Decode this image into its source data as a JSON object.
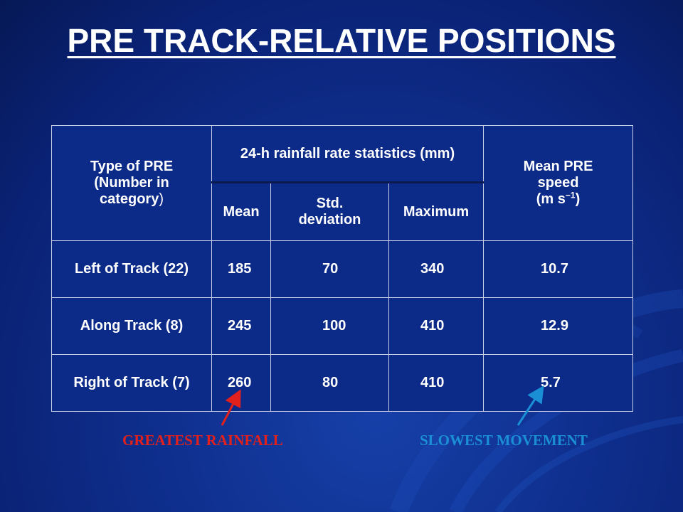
{
  "title": "PRE TRACK-RELATIVE POSITIONS",
  "table": {
    "type_header_line1": "Type of PRE",
    "type_header_line2": "(Number in",
    "type_header_line3": "category",
    "type_header_paren": ")",
    "rainfall_header": "24-h rainfall rate statistics (mm)",
    "speed_header_line1": "Mean PRE",
    "speed_header_line2": "speed",
    "speed_header_unit_open": "(m s",
    "speed_header_unit_sup": "−1",
    "speed_header_unit_close": ")",
    "col_mean": "Mean",
    "col_std_line1": "Std.",
    "col_std_line2": "deviation",
    "col_max": "Maximum",
    "rows": [
      {
        "label": "Left of Track (22)",
        "mean": "185",
        "std": "70",
        "max": "340",
        "speed": "10.7"
      },
      {
        "label": "Along Track (8)",
        "mean": "245",
        "std": "100",
        "max": "410",
        "speed": "12.9"
      },
      {
        "label": "Right of Track (7)",
        "mean": "260",
        "std": "80",
        "max": "410",
        "speed": "5.7"
      }
    ]
  },
  "callouts": {
    "greatest": "GREATEST RAINFALL",
    "slowest": "SLOWEST MOVEMENT"
  },
  "colors": {
    "background": "#0f2f8e",
    "greatest": "#e2201c",
    "slowest": "#1a8fd6"
  }
}
